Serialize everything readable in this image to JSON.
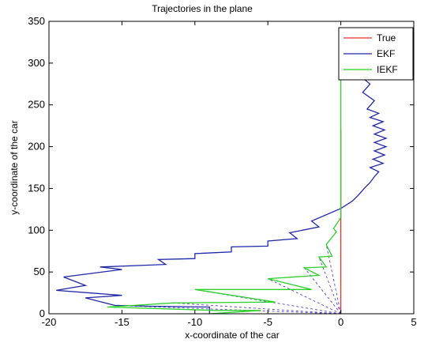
{
  "chart_data": {
    "type": "line",
    "title": "Trajectories in the plane",
    "xlabel": "x-coordinate of the car",
    "ylabel": "y-coordinate of the car",
    "xlim": [
      -20,
      5
    ],
    "ylim": [
      0,
      350
    ],
    "xticks": [
      -20,
      -15,
      -10,
      -5,
      0,
      5
    ],
    "yticks": [
      0,
      50,
      100,
      150,
      200,
      250,
      300,
      350
    ],
    "grid": false,
    "legend_position": "top-right",
    "legend": [
      "True",
      "EKF",
      "IEKF"
    ],
    "series": [
      {
        "name": "True",
        "color": "#e8322b",
        "x": [
          0,
          0
        ],
        "y": [
          0,
          220
        ]
      },
      {
        "name": "EKF",
        "color": "#1f26a8",
        "x": [
          -9,
          -9,
          -9,
          -13,
          -15.5,
          -17.5,
          -15,
          -19.5,
          -17.5,
          -19,
          -15,
          -16.5,
          -12,
          -12.5,
          -10,
          -10,
          -7.5,
          -7.5,
          -5,
          -5,
          -3,
          -3.5,
          -1.5,
          -2,
          0,
          0.8,
          1.2,
          1.6,
          2.0,
          2.3,
          2.6,
          2.0,
          2.9,
          2.2,
          3.0,
          2.3,
          3.1,
          2.3,
          3.1,
          2.3,
          3.0,
          2.2,
          2.9,
          2.0,
          2.6,
          1.8,
          2.3,
          1.5,
          2.0,
          1.3
        ],
        "y": [
          0,
          3,
          8,
          9,
          10,
          19,
          22,
          28,
          34,
          44,
          53,
          56,
          59,
          65,
          66,
          72,
          74,
          80,
          81,
          87,
          90,
          97,
          104,
          111,
          126,
          135,
          142,
          150,
          157,
          164,
          170,
          175,
          180,
          185,
          190,
          195,
          200,
          205,
          210,
          215,
          220,
          225,
          230,
          235,
          240,
          245,
          255,
          265,
          275,
          285
        ]
      },
      {
        "name": "IEKF",
        "color": "#2cd02a",
        "x": [
          -9,
          -5.5,
          -8.5,
          -16,
          -11.5,
          -4.5,
          -10,
          -2,
          -5,
          -1.5,
          -2.5,
          -1,
          -1.5,
          -0.6,
          -1,
          -0.3,
          -0.5,
          0,
          0,
          0,
          0
        ],
        "y": [
          0,
          4,
          4,
          8,
          13,
          14,
          29,
          29,
          42,
          46,
          55,
          56,
          68,
          69,
          83,
          98,
          102,
          115,
          145,
          200,
          315
        ]
      }
    ],
    "annotations": [
      {
        "type": "dashed-rays",
        "color": "#5a3fc8",
        "from": [
          0,
          0
        ],
        "to": [
          [
            -15.5,
            10
          ],
          [
            -11.5,
            13
          ],
          [
            -10,
            29
          ],
          [
            -5,
            42
          ],
          [
            -2.5,
            55
          ],
          [
            -1.5,
            68
          ],
          [
            -1,
            83
          ]
        ]
      }
    ]
  }
}
